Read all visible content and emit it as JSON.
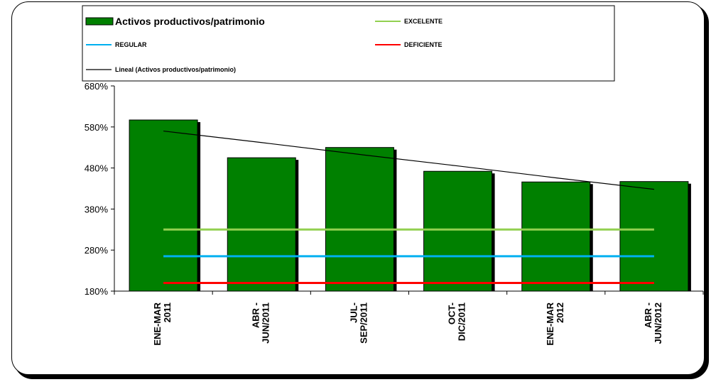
{
  "chart_data": {
    "type": "bar",
    "categories": [
      [
        "ENE-MAR",
        "2011"
      ],
      [
        "ABR -",
        "JUN/2011"
      ],
      [
        "JUL-",
        "SEP/2011"
      ],
      [
        "OCT-",
        "DIC/2011"
      ],
      [
        "ENE-MAR",
        "2012"
      ],
      [
        "ABR -",
        "JUN/2012"
      ]
    ],
    "series": [
      {
        "name": "Activos productivos/patrimonio",
        "kind": "bar",
        "color": "#008000",
        "values": [
          5.97,
          5.05,
          5.3,
          4.72,
          4.46,
          4.47
        ]
      },
      {
        "name": "EXCELENTE",
        "kind": "line",
        "color": "#92D050",
        "values": [
          3.3,
          3.3,
          3.3,
          3.3,
          3.3,
          3.3
        ]
      },
      {
        "name": "REGULAR",
        "kind": "line",
        "color": "#00B0F0",
        "values": [
          2.65,
          2.65,
          2.65,
          2.65,
          2.65,
          2.65
        ]
      },
      {
        "name": "DEFICIENTE",
        "kind": "line",
        "color": "#FF0000",
        "values": [
          2.0,
          2.0,
          2.0,
          2.0,
          2.0,
          2.0
        ]
      },
      {
        "name": "Lineal (Activos productivos/patrimonio)",
        "kind": "trend",
        "color": "#000000",
        "values": [
          5.7,
          5.42,
          5.13,
          4.85,
          4.56,
          4.28
        ]
      }
    ],
    "y_ticks": [
      "180%",
      "280%",
      "380%",
      "480%",
      "580%",
      "680%"
    ],
    "ylim": [
      1.8,
      6.8
    ],
    "title": "",
    "xlabel": "",
    "ylabel": "",
    "grid": false,
    "legend_position": "top"
  }
}
